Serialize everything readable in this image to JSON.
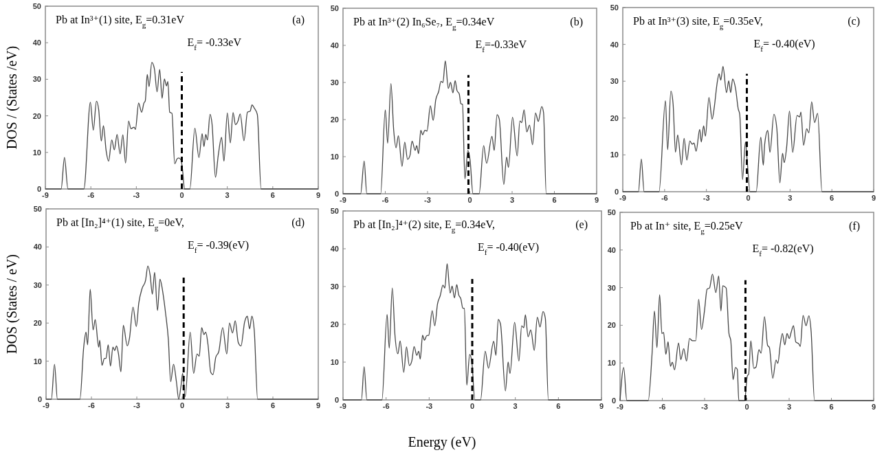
{
  "chart_data": [
    {
      "type": "line",
      "title": "Pb at In³⁺(1) site, E$_{g}$=0.31eV",
      "ylabel": "DOS / (States /eV)",
      "annotations": [
        "(a)",
        "E$_{f}$= -0.33eV"
      ],
      "xlim": [
        -9,
        9
      ],
      "ylim": [
        0,
        50
      ],
      "xticks": [
        -9,
        -6,
        -3,
        0,
        3,
        6,
        9
      ],
      "yticks": [
        0,
        10,
        20,
        30,
        40,
        50
      ],
      "grid": false,
      "marker": "none",
      "line_style": "solid",
      "ref_lines": [
        {
          "axis": "x",
          "value": 0,
          "color": "#000000",
          "line_style": "dashed"
        }
      ],
      "series": [
        {
          "color": "#444444",
          "x": [
            -9,
            -7.96,
            -7.74,
            -7.51,
            -6.46,
            -6.03,
            -5.84,
            -5.63,
            -5.48,
            -5.31,
            -5.17,
            -4.99,
            -4.83,
            -4.62,
            -4.45,
            -4.27,
            -4.07,
            -3.89,
            -3.71,
            -3.51,
            -3.36,
            -3.14,
            -3.06,
            -2.85,
            -2.65,
            -2.5,
            -2.41,
            -2.28,
            -2.16,
            -1.98,
            -1.81,
            -1.63,
            -1.46,
            -1.3,
            -1.15,
            -1.01,
            -0.92,
            -0.8,
            -0.65,
            -0.47,
            -0.32,
            -0.2,
            -0.05,
            0.06,
            0.17,
            0.53,
            0.86,
            1.13,
            1.34,
            1.46,
            1.58,
            1.69,
            1.86,
            1.99,
            2.22,
            2.4,
            2.62,
            2.78,
            3.0,
            3.2,
            3.38,
            3.54,
            3.7,
            3.85,
            4.1,
            4.33,
            4.51,
            4.63,
            4.78,
            4.98,
            5.23,
            9
          ],
          "values": [
            0,
            0,
            8.6,
            0,
            0,
            23.7,
            16.1,
            24,
            21.6,
            13.1,
            17.3,
            10.4,
            7.6,
            13.4,
            10.7,
            14.9,
            9.6,
            14.8,
            7.1,
            18.6,
            16.5,
            16.9,
            16.3,
            23.5,
            21,
            23.5,
            24.1,
            31.3,
            28,
            34.6,
            32.9,
            26.6,
            32.7,
            24.8,
            30.1,
            28.2,
            29.4,
            21,
            20.7,
            6.9,
            8.2,
            8.5,
            7.9,
            4.8,
            0,
            0,
            16.6,
            8.6,
            15.1,
            11.6,
            14.9,
            13.4,
            20.4,
            17.9,
            3.2,
            9.1,
            14.1,
            7.6,
            20.8,
            12.6,
            20.9,
            17.6,
            18.5,
            20.5,
            13.2,
            21,
            21.3,
            23,
            22.1,
            20.4,
            0,
            0
          ]
        }
      ]
    },
    {
      "type": "line",
      "title": "Pb at In³⁺(2) In₆Se₇, E$_{g}$=0.34eV",
      "annotations": [
        "(b)",
        "E$_{f}$=-0.33eV"
      ],
      "xlim": [
        -9,
        9
      ],
      "ylim": [
        0,
        50
      ],
      "xticks": [
        -9,
        -6,
        -3,
        0,
        3,
        6,
        9
      ],
      "yticks": [
        0,
        10,
        20,
        30,
        40,
        50
      ],
      "grid": false,
      "marker": "none",
      "line_style": "solid",
      "ref_lines": [
        {
          "axis": "x",
          "value": -0.1,
          "color": "#000000",
          "line_style": "dashed"
        }
      ],
      "series": [
        {
          "color": "#444444",
          "x": [
            -9,
            -7.75,
            -7.5,
            -7.31,
            -6.33,
            -6.0,
            -5.83,
            -5.6,
            -5.4,
            -5.24,
            -5.07,
            -4.81,
            -4.62,
            -4.42,
            -4.25,
            -4.1,
            -3.88,
            -3.77,
            -3.64,
            -3.48,
            -3.35,
            -3.19,
            -3.04,
            -2.8,
            -2.6,
            -2.42,
            -2.21,
            -2.05,
            -1.91,
            -1.74,
            -1.53,
            -1.37,
            -1.2,
            -1.04,
            -0.91,
            -0.75,
            -0.64,
            -0.52,
            -0.35,
            -0.14,
            0.02,
            0.22,
            0.66,
            0.98,
            1.19,
            1.57,
            1.73,
            1.93,
            2.09,
            2.41,
            2.61,
            2.74,
            3.03,
            3.36,
            3.55,
            3.68,
            3.85,
            4.04,
            4.24,
            4.45,
            4.66,
            4.86,
            5.1,
            5.23,
            5.42,
            9
          ],
          "values": [
            0,
            0,
            8.8,
            0,
            0,
            22.6,
            13.6,
            29.7,
            17,
            12.4,
            15.6,
            7.4,
            13.9,
            9.3,
            10.3,
            14.2,
            11.7,
            13,
            10.8,
            17.1,
            15.9,
            17.1,
            16.9,
            23.7,
            19.8,
            25.3,
            27.6,
            30.3,
            30,
            35.8,
            28.4,
            30,
            27.2,
            30.5,
            27.8,
            26.9,
            24.3,
            24.1,
            4,
            11.7,
            9,
            0,
            0,
            13,
            8.2,
            15.5,
            11.7,
            21.3,
            20.1,
            2.5,
            9.9,
            7.1,
            20.6,
            10.2,
            19.6,
            19.2,
            22.6,
            16.7,
            18.5,
            13.2,
            21.8,
            19.5,
            23.5,
            21.9,
            0,
            0
          ]
        }
      ]
    },
    {
      "type": "line",
      "title": "Pb at In³⁺(3) site, E$_{g}$=0.35eV,",
      "annotations": [
        "(c)",
        "E$_{f}$= -0.40(eV)"
      ],
      "xlim": [
        -9,
        9
      ],
      "ylim": [
        0,
        50
      ],
      "xticks": [
        -9,
        -6,
        -3,
        0,
        3,
        6,
        9
      ],
      "yticks": [
        0,
        10,
        20,
        30,
        40,
        50
      ],
      "grid": false,
      "marker": "none",
      "line_style": "solid",
      "ref_lines": [
        {
          "axis": "x",
          "value": -0.1,
          "color": "#000000",
          "line_style": "dashed"
        }
      ],
      "series": [
        {
          "color": "#444444",
          "x": [
            -9,
            -7.88,
            -7.67,
            -7.47,
            -6.4,
            -5.94,
            -5.78,
            -5.55,
            -5.39,
            -5.22,
            -5.06,
            -4.79,
            -4.6,
            -4.4,
            -4.19,
            -4.02,
            -3.89,
            -3.74,
            -3.48,
            -3.37,
            -3.2,
            -3.07,
            -2.82,
            -2.59,
            -2.43,
            -2.25,
            -2.09,
            -1.97,
            -1.81,
            -1.56,
            -1.4,
            -1.26,
            -1.12,
            -0.9,
            -0.72,
            -0.61,
            -0.41,
            -0.2,
            -0.08,
            0.13,
            0.57,
            0.9,
            1.08,
            1.18,
            1.4,
            1.56,
            1.84,
            2.05,
            2.27,
            2.46,
            2.58,
            2.76,
            2.96,
            3.19,
            3.5,
            3.69,
            3.78,
            3.97,
            4.19,
            4.35,
            4.55,
            4.76,
            4.98,
            5.29,
            9
          ],
          "values": [
            0,
            0,
            8.9,
            0,
            0,
            24.7,
            11.4,
            27.3,
            23.8,
            10.7,
            15.4,
            7.3,
            14.5,
            8.6,
            13.8,
            12.9,
            13.2,
            11,
            16.9,
            13.5,
            17.9,
            15.1,
            25.6,
            19.7,
            23.1,
            29,
            32,
            30.3,
            34,
            26.9,
            30.1,
            26.9,
            30.6,
            27.8,
            22.5,
            21,
            3.3,
            13.5,
            8.6,
            0,
            0,
            14.8,
            7.2,
            12.9,
            16.6,
            10.7,
            21,
            17.2,
            2.4,
            10.4,
            7.9,
            12.3,
            21.9,
            10.7,
            20.7,
            20.3,
            21.6,
            12.6,
            17.1,
            16,
            24.4,
            18.8,
            21.3,
            0,
            0
          ]
        }
      ]
    },
    {
      "type": "line",
      "title": "Pb at [In₂]⁴⁺(1) site, E$_{g}$=0eV,",
      "ylabel": "DOS (States / eV)",
      "annotations": [
        "(d)",
        "E$_{f}$= -0.39(eV)"
      ],
      "xlim": [
        -9,
        9
      ],
      "ylim": [
        0,
        50
      ],
      "xticks": [
        -9,
        -6,
        -3,
        0,
        3,
        6,
        9
      ],
      "yticks": [
        0,
        10,
        20,
        30,
        40,
        50
      ],
      "grid": false,
      "marker": "none",
      "line_style": "solid",
      "ref_lines": [
        {
          "axis": "x",
          "value": 0.1,
          "color": "#000000",
          "line_style": "dashed"
        }
      ],
      "series": [
        {
          "color": "#444444",
          "x": [
            -9,
            -8.65,
            -8.44,
            -8.25,
            -6.76,
            -6.51,
            -6.36,
            -6.25,
            -6.08,
            -5.89,
            -5.75,
            -5.52,
            -5.45,
            -5.3,
            -5.14,
            -5.04,
            -4.89,
            -4.74,
            -4.58,
            -4.46,
            -4.34,
            -4.21,
            -4.05,
            -3.89,
            -3.63,
            -3.48,
            -3.25,
            -3.03,
            -2.87,
            -2.65,
            -2.42,
            -2.27,
            -2.12,
            -1.97,
            -1.82,
            -1.63,
            -1.47,
            -1.26,
            -1.1,
            -0.91,
            -0.76,
            -0.57,
            -0.38,
            -0.23,
            -0.08,
            0.03,
            0.2,
            0.53,
            0.76,
            0.98,
            1.13,
            1.29,
            1.44,
            1.56,
            1.71,
            1.89,
            2.04,
            2.22,
            2.42,
            2.68,
            2.95,
            3.13,
            3.33,
            3.51,
            3.71,
            3.89,
            4.13,
            4.31,
            4.46,
            4.61,
            4.77,
            4.99,
            9
          ],
          "values": [
            0,
            0,
            9.2,
            0,
            0,
            13.7,
            17.6,
            14.3,
            28.9,
            18.2,
            20.9,
            13.7,
            15.5,
            8.9,
            10.7,
            10.7,
            14.3,
            8.7,
            13.7,
            12.8,
            14,
            11.9,
            7.2,
            19.4,
            14,
            16.1,
            24.2,
            19.1,
            25.2,
            29.1,
            31.2,
            35,
            32.7,
            27.6,
            33.3,
            23.3,
            31.5,
            27.6,
            22.7,
            15.5,
            4.6,
            9.2,
            4.6,
            0,
            3.4,
            6.8,
            0.7,
            17.6,
            6.8,
            11.9,
            11.3,
            18.8,
            17,
            17.6,
            14.3,
            7.1,
            6.5,
            11,
            12.5,
            18.8,
            11.9,
            20,
            17.4,
            20.6,
            14.9,
            14,
            20.3,
            21.8,
            18.5,
            21.8,
            17.9,
            0,
            0
          ]
        }
      ]
    },
    {
      "type": "line",
      "title": "Pb at [In₂]⁴⁺(2) site, E$_{g}$=0.34eV,",
      "xlabel": "Energy (eV)",
      "annotations": [
        "(e)",
        "E$_{f}$= -0.40(eV)"
      ],
      "xlim": [
        -9,
        9
      ],
      "ylim": [
        0,
        50
      ],
      "xticks": [
        -9,
        -6,
        -3,
        0,
        3,
        6,
        9
      ],
      "yticks": [
        0,
        10,
        20,
        30,
        40,
        50
      ],
      "grid": false,
      "marker": "none",
      "line_style": "solid",
      "ref_lines": [
        {
          "axis": "x",
          "value": 0,
          "color": "#000000",
          "line_style": "dashed"
        }
      ],
      "series": [
        {
          "color": "#444444",
          "x": [
            -9,
            -7.72,
            -7.53,
            -7.34,
            -6.29,
            -5.93,
            -5.78,
            -5.57,
            -5.38,
            -5.18,
            -5.02,
            -4.77,
            -4.58,
            -4.38,
            -4.21,
            -4.05,
            -3.86,
            -3.73,
            -3.62,
            -3.46,
            -3.33,
            -3.17,
            -3.03,
            -2.79,
            -2.61,
            -2.42,
            -2.23,
            -2.04,
            -1.91,
            -1.75,
            -1.54,
            -1.4,
            -1.24,
            -1.08,
            -0.95,
            -0.79,
            -0.66,
            -0.55,
            -0.38,
            -0.18,
            -0.02,
            0.18,
            0.58,
            0.9,
            1.13,
            1.49,
            1.65,
            1.81,
            1.97,
            2.31,
            2.5,
            2.63,
            2.95,
            3.25,
            3.44,
            3.59,
            3.7,
            3.89,
            4.08,
            4.32,
            4.53,
            4.72,
            4.93,
            5.09,
            5.3,
            9
          ],
          "values": [
            0,
            0,
            8.8,
            0,
            0,
            22.6,
            13.7,
            29.6,
            17,
            12.2,
            15.6,
            7.3,
            14,
            9.1,
            10.3,
            14.1,
            11.8,
            12.9,
            10.8,
            17.1,
            15.8,
            17,
            17.1,
            23.6,
            19.6,
            25.4,
            27.6,
            30.4,
            29.6,
            36,
            28.3,
            30.1,
            27,
            30.5,
            27.9,
            26.7,
            24.3,
            24.2,
            3.9,
            12,
            9.7,
            0,
            0,
            12.9,
            8.4,
            15.5,
            11.8,
            21.3,
            20,
            2.4,
            10,
            7,
            20.5,
            10.3,
            19.6,
            19.1,
            22.5,
            16.7,
            18.5,
            13.1,
            21.9,
            19.3,
            23.4,
            21.6,
            0,
            0
          ]
        }
      ]
    },
    {
      "type": "line",
      "title": "Pb at In⁺ site, E$_{g}$=0.25eV",
      "annotations": [
        "(f)",
        "E$_{f}$= -0.82(eV)"
      ],
      "xlim": [
        -9,
        9
      ],
      "ylim": [
        0,
        50
      ],
      "xticks": [
        -9,
        -6,
        -3,
        0,
        3,
        6,
        9
      ],
      "yticks": [
        0,
        10,
        20,
        30,
        40,
        50
      ],
      "grid": false,
      "marker": "none",
      "line_style": "solid",
      "ref_lines": [
        {
          "axis": "x",
          "value": -0.1,
          "color": "#000000",
          "line_style": "dashed"
        }
      ],
      "series": [
        {
          "color": "#444444",
          "x": [
            -9,
            -8.74,
            -8.52,
            -7.0,
            -6.73,
            -6.56,
            -6.38,
            -6.19,
            -6.03,
            -5.91,
            -5.75,
            -5.59,
            -5.42,
            -5.29,
            -5.13,
            -4.85,
            -4.69,
            -4.48,
            -4.28,
            -4.07,
            -3.86,
            -3.63,
            -3.42,
            -3.22,
            -3.01,
            -2.82,
            -2.65,
            -2.44,
            -2.2,
            -2.0,
            -1.84,
            -1.71,
            -1.47,
            -1.27,
            -1.14,
            -0.98,
            -0.81,
            -0.68,
            -0.57,
            -0.16,
            0.03,
            0.13,
            0.28,
            0.49,
            0.65,
            0.86,
            1.01,
            1.25,
            1.47,
            1.6,
            1.84,
            2.07,
            2.2,
            2.36,
            2.52,
            2.69,
            2.85,
            3.01,
            3.14,
            3.31,
            3.47,
            3.7,
            3.79,
            3.99,
            4.2,
            4.4,
            4.56,
            4.8,
            9
          ],
          "values": [
            0,
            8.8,
            0,
            0,
            12.3,
            23.8,
            14.1,
            28.1,
            17.8,
            18.1,
            12.3,
            15.6,
            9.1,
            10.2,
            8.2,
            15.3,
            10.9,
            13.8,
            10.5,
            16.5,
            15.9,
            15.9,
            26.9,
            18.9,
            23.8,
            29.6,
            29.9,
            33.6,
            28.7,
            33.1,
            23.8,
            30.5,
            29.9,
            17.8,
            15.9,
            5.6,
            8.8,
            8.3,
            0,
            0,
            6.5,
            7.1,
            15.9,
            8.6,
            8.9,
            13.5,
            12.6,
            22.3,
            14.7,
            14.1,
            5.9,
            10.8,
            9.9,
            14.6,
            17.8,
            14.8,
            17.8,
            16.5,
            18.1,
            19.9,
            15.6,
            15,
            14.4,
            22.6,
            19.9,
            22.5,
            18.4,
            0,
            0
          ]
        }
      ]
    }
  ]
}
